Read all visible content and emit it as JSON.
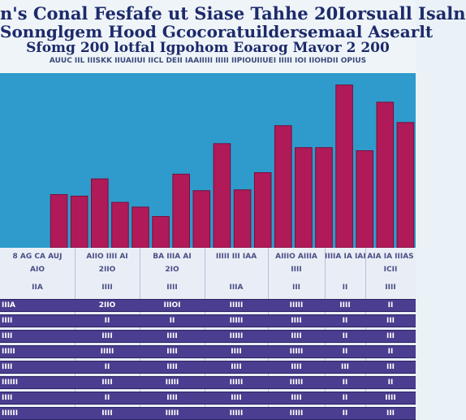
{
  "header": {
    "title_line1": "n's Conal Fesfafe ut Siase Tahhe 20Iorsuall Isaln",
    "title_line2": "Sonnglgem Hood Gcocoratuildersemaal Asearlt",
    "title_line3": "Sfomg 200 lotfal Igpohom Eoarog Mavor 2 200",
    "subtitle": "AUUC IIL IIISKK IIUAIIUI IICL DEII IAAIIIII IIIII IIPIOUIIUEI IIIII IOI IIOHDII OPIUS"
  },
  "colors": {
    "background": "#2e9bcc",
    "bar": "#b01a58",
    "bar_edge": "#7a0e3a",
    "row": "#4b3d8f"
  },
  "chart_data": {
    "type": "bar",
    "title": "n's Conal Fesfafe ut Siase Tahhe 20Iorsuall Isaln",
    "xlabel": "",
    "ylabel": "",
    "ylim": [
      0,
      220
    ],
    "values": [
      68,
      66,
      88,
      58,
      52,
      40,
      94,
      73,
      133,
      74,
      96,
      156,
      128,
      128,
      208,
      124,
      186,
      160
    ]
  },
  "table": {
    "columns": [
      "8 AG CA AUJ",
      "AIIO IIII AI",
      "BA IIIA AI",
      "IIIII III IAA",
      "AIIIO AIIIA",
      "IIIIA IA IAI",
      "AIA IA IIIAS"
    ],
    "subheader1": [
      "AIO",
      "2IIO",
      "2IO",
      "",
      "IIII",
      "",
      "ICII"
    ],
    "subheader2": [
      "IIA",
      "IIII",
      "IIII",
      "IIIA",
      "III",
      "II",
      "IIII"
    ],
    "rows": [
      [
        "IIIA",
        "2IIO",
        "IIIOI",
        "IIIII",
        "IIIII",
        "IIII",
        "II"
      ],
      [
        "IIII",
        "II",
        "II",
        "IIIII",
        "IIII",
        "II",
        "III"
      ],
      [
        "IIII",
        "IIII",
        "IIII",
        "IIIII",
        "IIII",
        "II",
        "III"
      ],
      [
        "IIIII",
        "IIIII",
        "IIII",
        "IIII",
        "IIIII",
        "II",
        "II"
      ],
      [
        "IIII",
        "II",
        "IIII",
        "IIII",
        "IIII",
        "III",
        "III"
      ],
      [
        "IIIIII",
        "IIII",
        "IIIII",
        "IIIII",
        "IIIII",
        "II",
        "II"
      ],
      [
        "IIII",
        "II",
        "IIII",
        "IIII",
        "IIII",
        "II",
        "IIII"
      ],
      [
        "IIIIII",
        "IIII",
        "IIIII",
        "IIIII",
        "IIIII",
        "II",
        "III"
      ]
    ]
  }
}
